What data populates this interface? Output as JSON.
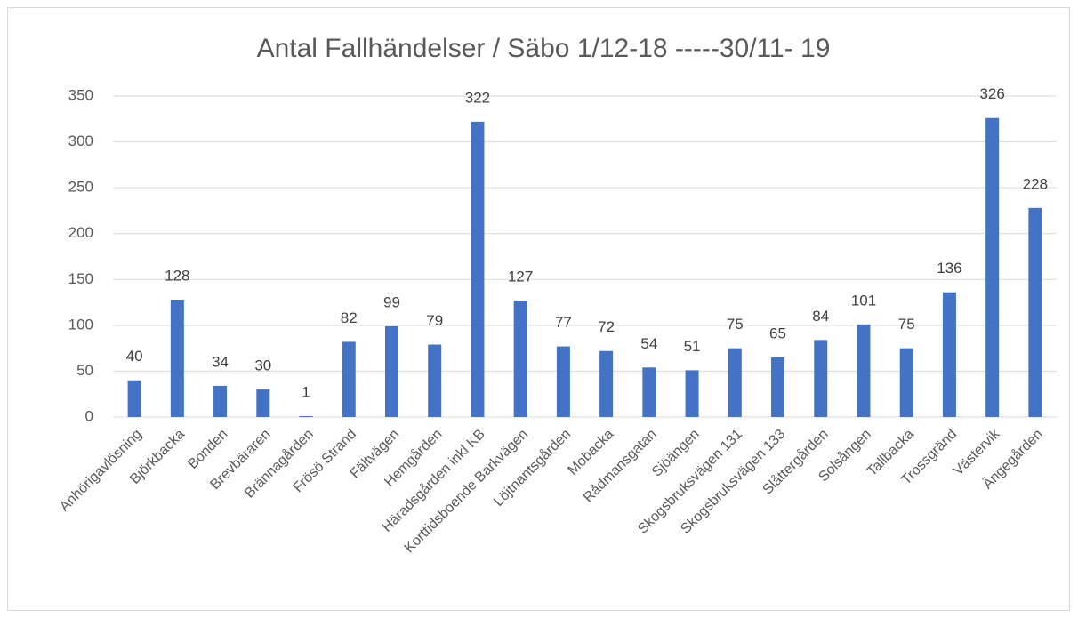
{
  "chart_data": {
    "type": "bar",
    "title": "Antal Fallhändelser / Säbo  1/12-18 -----30/11- 19",
    "categories": [
      "Anhörigavlösning",
      "Björkbacka",
      "Bonden",
      "Brevbäraren",
      "Brännagården",
      "Frösö Strand",
      "Fältvägen",
      "Hemgården",
      "Häradsgården inkl KB",
      "Korttidsboende Barkvägen",
      "Löjtnantsgården",
      "Mobacka",
      "Rådmansgatan",
      "Sjöängen",
      "Skogsbruksvägen 131",
      "Skogsbruksvägen 133",
      "Slåttergården",
      "Solsången",
      "Tallbacka",
      "Trossgränd",
      "Västervik",
      "Ängegården"
    ],
    "values": [
      40,
      128,
      34,
      30,
      1,
      82,
      99,
      79,
      322,
      127,
      77,
      72,
      54,
      51,
      75,
      65,
      84,
      101,
      75,
      136,
      326,
      228
    ],
    "color": "#4472c4",
    "ylim": [
      0,
      350
    ],
    "yticks": [
      0,
      50,
      100,
      150,
      200,
      250,
      300,
      350
    ],
    "grid": true
  }
}
